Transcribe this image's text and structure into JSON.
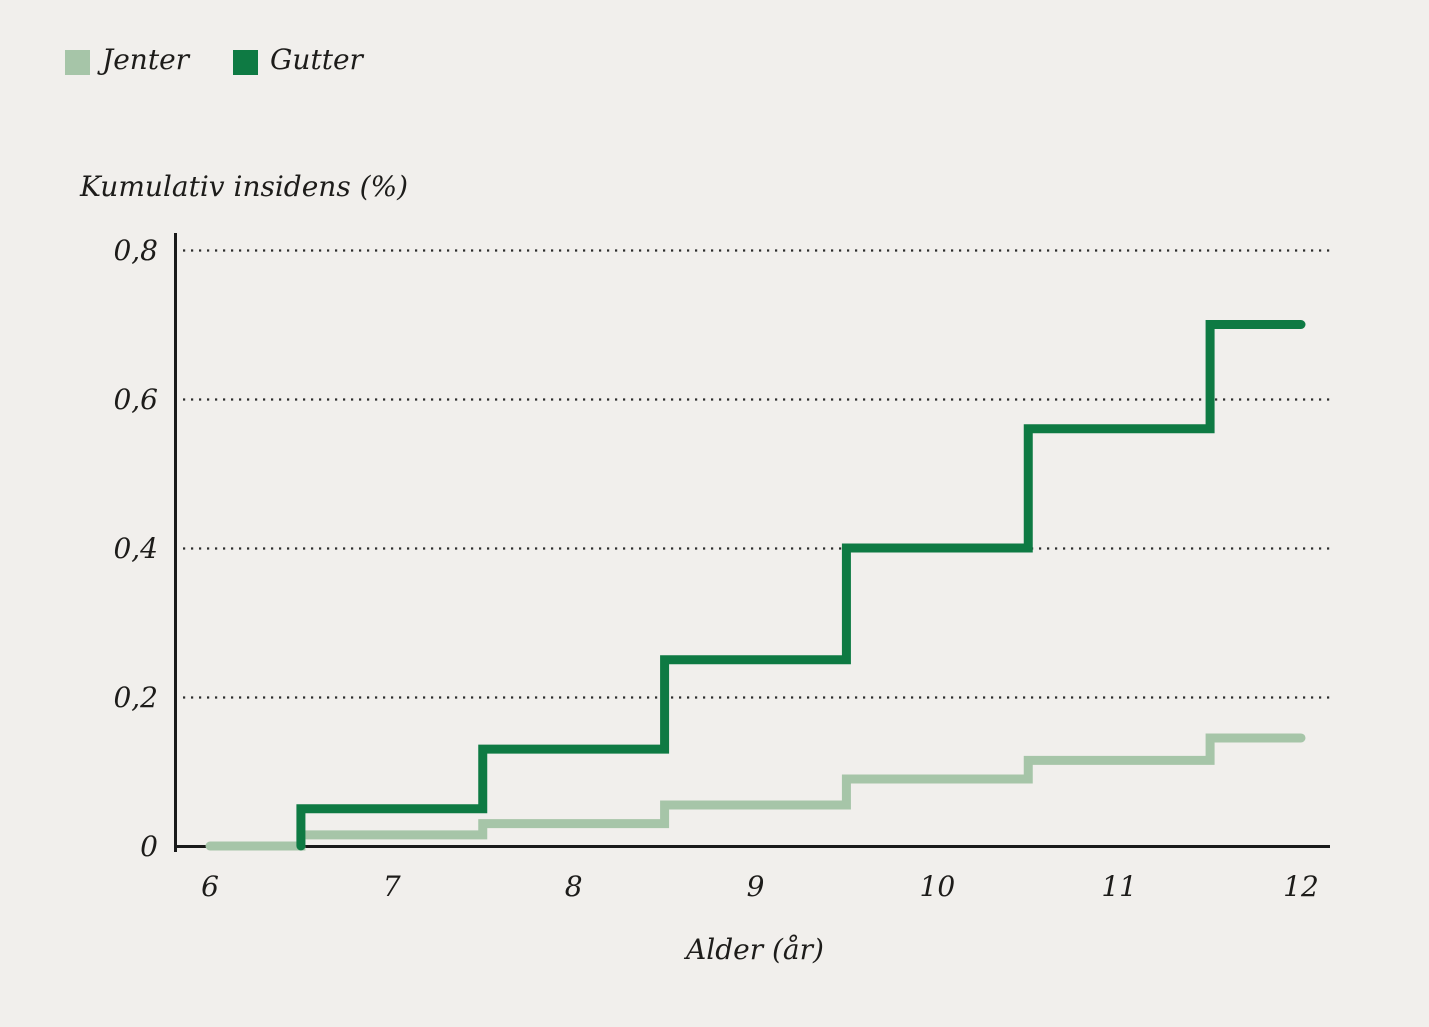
{
  "colors": {
    "background": "#f1efec",
    "text": "#1d1c1a",
    "axis": "#1a1a1a",
    "grid": "#2d2d2d",
    "jenter": "#a6c5a8",
    "gutter": "#0e7a43"
  },
  "legend": {
    "items": [
      {
        "label": "Jenter",
        "color": "#a6c5a8"
      },
      {
        "label": "Gutter",
        "color": "#0e7a43"
      }
    ]
  },
  "chart_data": {
    "type": "line",
    "line_style": "step-after",
    "title": "",
    "xlabel": "Alder (år)",
    "ylabel": "Kumulativ insidens (%)",
    "xlim": [
      6,
      12
    ],
    "ylim": [
      0,
      0.8
    ],
    "grid": "dotted-horizontal",
    "legend_position": "top-left",
    "x_ticks": [
      {
        "value": 6,
        "label": "6"
      },
      {
        "value": 7,
        "label": "7"
      },
      {
        "value": 8,
        "label": "8"
      },
      {
        "value": 9,
        "label": "9"
      },
      {
        "value": 10,
        "label": "10"
      },
      {
        "value": 11,
        "label": "11"
      },
      {
        "value": 12,
        "label": "12"
      }
    ],
    "y_ticks": [
      {
        "value": 0,
        "label": "0"
      },
      {
        "value": 0.2,
        "label": "0,2"
      },
      {
        "value": 0.4,
        "label": "0,4"
      },
      {
        "value": 0.6,
        "label": "0,6"
      },
      {
        "value": 0.8,
        "label": "0,8"
      }
    ],
    "gridlines_y": [
      0.2,
      0.4,
      0.6,
      0.8
    ],
    "series": [
      {
        "name": "Jenter",
        "color": "#a6c5a8",
        "start": {
          "x": 6,
          "y": 0
        },
        "steps": [
          {
            "x": 6.5,
            "y": 0.015
          },
          {
            "x": 7.5,
            "y": 0.03
          },
          {
            "x": 8.5,
            "y": 0.055
          },
          {
            "x": 9.5,
            "y": 0.09
          },
          {
            "x": 10.5,
            "y": 0.115
          },
          {
            "x": 11.5,
            "y": 0.145
          }
        ],
        "end_x": 12
      },
      {
        "name": "Gutter",
        "color": "#0e7a43",
        "start": {
          "x": 6.5,
          "y": 0
        },
        "steps": [
          {
            "x": 6.5,
            "y": 0.05
          },
          {
            "x": 7.5,
            "y": 0.13
          },
          {
            "x": 8.5,
            "y": 0.25
          },
          {
            "x": 9.5,
            "y": 0.4
          },
          {
            "x": 10.5,
            "y": 0.56
          },
          {
            "x": 11.5,
            "y": 0.7
          }
        ],
        "end_x": 12
      }
    ]
  }
}
